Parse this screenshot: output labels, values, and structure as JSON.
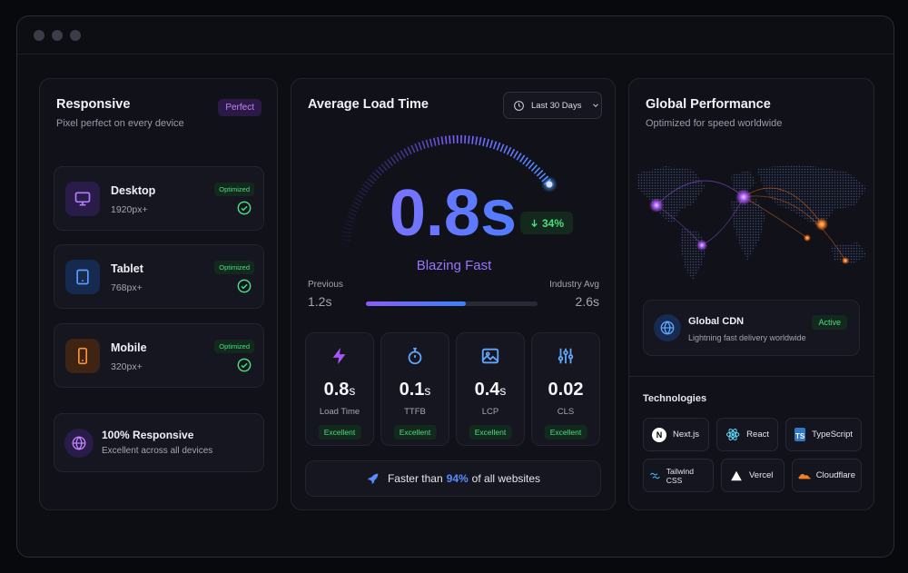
{
  "responsive": {
    "title": "Responsive",
    "subtitle": "Pixel perfect on every device",
    "badge": "Perfect",
    "devices": [
      {
        "name": "Desktop",
        "size": "1920px+",
        "status": "Optimized",
        "icon": "monitor-icon",
        "color": "#a855f7"
      },
      {
        "name": "Tablet",
        "size": "768px+",
        "status": "Optimized",
        "icon": "tablet-icon",
        "color": "#3b82f6"
      },
      {
        "name": "Mobile",
        "size": "320px+",
        "status": "Optimized",
        "icon": "smartphone-icon",
        "color": "#f97316"
      }
    ],
    "summary": {
      "title": "100% Responsive",
      "subtitle": "Excellent across all devices",
      "icon": "globe-icon"
    }
  },
  "load": {
    "title": "Average Load Time",
    "range_label": "Last 30 Days",
    "value": "0.8s",
    "change": "34%",
    "tagline": "Blazing Fast",
    "previous_label": "Previous",
    "previous_value": "1.2s",
    "industry_label": "Industry Avg",
    "industry_value": "2.6s",
    "progress": 0.58,
    "metrics": [
      {
        "value": "0.8",
        "unit": "s",
        "label": "Load Time",
        "status": "Excellent",
        "icon": "lightning-icon"
      },
      {
        "value": "0.1",
        "unit": "s",
        "label": "TTFB",
        "status": "Excellent",
        "icon": "stopwatch-icon"
      },
      {
        "value": "0.4",
        "unit": "s",
        "label": "LCP",
        "status": "Excellent",
        "icon": "image-icon"
      },
      {
        "value": "0.02",
        "unit": "",
        "label": "CLS",
        "status": "Excellent",
        "icon": "sliders-icon"
      }
    ],
    "footer_pre": "Faster than",
    "footer_pct": "94%",
    "footer_post": "of all websites"
  },
  "global": {
    "title": "Global Performance",
    "subtitle": "Optimized for speed worldwide",
    "cdn_title": "Global CDN",
    "cdn_badge": "Active",
    "cdn_subtitle": "Lightning fast delivery worldwide",
    "tech_title": "Technologies",
    "technologies": [
      "Next.js",
      "React",
      "TypeScript",
      "Tailwind CSS",
      "Vercel",
      "Cloudflare"
    ]
  },
  "colors": {
    "accent_purple": "#8b5cf6",
    "accent_blue": "#3b82f6",
    "success": "#4ade80",
    "orange": "#f97316"
  }
}
